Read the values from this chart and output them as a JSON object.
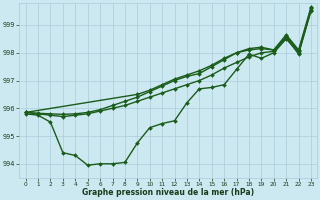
{
  "xlabel": "Graphe pression niveau de la mer (hPa)",
  "background_color": "#cce8f0",
  "grid_color": "#aaccdd",
  "line_color": "#1a5c1a",
  "ylim": [
    993.5,
    999.8
  ],
  "xlim": [
    -0.5,
    23.5
  ],
  "yticks": [
    994,
    995,
    996,
    997,
    998,
    999
  ],
  "xticks": [
    0,
    1,
    2,
    3,
    4,
    5,
    6,
    7,
    8,
    9,
    10,
    11,
    12,
    13,
    14,
    15,
    16,
    17,
    18,
    19,
    20,
    21,
    22,
    23
  ],
  "series": [
    {
      "x": [
        0,
        1,
        2,
        3,
        4,
        5,
        6,
        7,
        8,
        9,
        10,
        11,
        12,
        13,
        14,
        15,
        16,
        17,
        18,
        19,
        20,
        21,
        22,
        23
      ],
      "y": [
        995.8,
        995.75,
        995.5,
        994.4,
        994.3,
        993.95,
        994.0,
        994.0,
        994.05,
        994.75,
        995.3,
        995.45,
        995.55,
        996.2,
        996.7,
        996.75,
        996.85,
        997.4,
        997.95,
        997.8,
        998.0,
        998.5,
        998.0,
        999.5
      ],
      "marker": "D",
      "markersize": 2.0,
      "linewidth": 1.0
    },
    {
      "x": [
        0,
        1,
        2,
        3,
        4,
        5,
        6,
        7,
        8,
        9,
        10,
        11,
        12,
        13,
        14,
        15,
        16,
        17,
        18,
        19,
        20,
        21,
        22,
        23
      ],
      "y": [
        995.85,
        995.8,
        995.75,
        995.7,
        995.75,
        995.8,
        995.9,
        996.0,
        996.1,
        996.25,
        996.4,
        996.55,
        996.7,
        996.85,
        997.0,
        997.2,
        997.45,
        997.65,
        997.85,
        998.0,
        998.05,
        998.55,
        997.95,
        999.55
      ],
      "marker": "D",
      "markersize": 2.0,
      "linewidth": 1.0
    },
    {
      "x": [
        0,
        1,
        2,
        3,
        4,
        5,
        6,
        7,
        8,
        9,
        10,
        11,
        12,
        13,
        14,
        15,
        16,
        17,
        18,
        19,
        20,
        21,
        22,
        23
      ],
      "y": [
        995.85,
        995.82,
        995.8,
        995.78,
        995.8,
        995.85,
        995.95,
        996.1,
        996.25,
        996.4,
        996.6,
        996.8,
        997.0,
        997.15,
        997.25,
        997.5,
        997.75,
        998.0,
        998.1,
        998.15,
        998.1,
        998.6,
        998.05,
        999.6
      ],
      "marker": "D",
      "markersize": 2.0,
      "linewidth": 1.0
    },
    {
      "x": [
        0,
        9,
        10,
        11,
        12,
        13,
        14,
        15,
        16,
        17,
        18,
        19,
        20,
        21,
        22,
        23
      ],
      "y": [
        995.85,
        996.5,
        996.65,
        996.85,
        997.05,
        997.2,
        997.35,
        997.55,
        997.8,
        998.0,
        998.15,
        998.2,
        998.1,
        998.65,
        998.1,
        999.65
      ],
      "marker": "D",
      "markersize": 2.0,
      "linewidth": 1.0
    }
  ]
}
